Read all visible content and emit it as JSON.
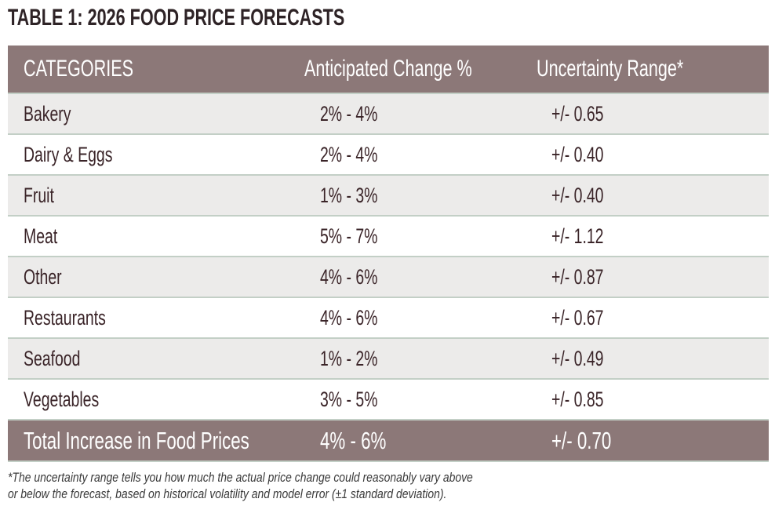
{
  "title": "TABLE 1: 2026 FOOD PRICE FORECASTS",
  "table": {
    "headers": [
      "CATEGORIES",
      "Anticipated Change %",
      "Uncertainty Range*"
    ],
    "rows": [
      [
        "Bakery",
        "2% - 4%",
        "+/- 0.65"
      ],
      [
        "Dairy & Eggs",
        "2% - 4%",
        "+/- 0.40"
      ],
      [
        "Fruit",
        "1% - 3%",
        "+/- 0.40"
      ],
      [
        "Meat",
        "5% - 7%",
        "+/- 1.12"
      ],
      [
        "Other",
        "4% - 6%",
        "+/- 0.87"
      ],
      [
        "Restaurants",
        "4% - 6%",
        "+/- 0.67"
      ],
      [
        "Seafood",
        "1% - 2%",
        "+/- 0.49"
      ],
      [
        "Vegetables",
        "3% - 5%",
        "+/- 0.85"
      ]
    ],
    "total": [
      "Total Increase in Food Prices",
      "4% - 6%",
      "+/- 0.70"
    ]
  },
  "footnote": {
    "line1": "*The uncertainty range tells you how much the actual price change could reasonably vary above",
    "line2": "or below the forecast, based on historical volatility and model error (±1 standard deviation)."
  },
  "colors": {
    "header_bg": "#8c7878",
    "row_alt": "#ecebea",
    "separator": "#c3cfc6",
    "text": "#3a2428"
  }
}
